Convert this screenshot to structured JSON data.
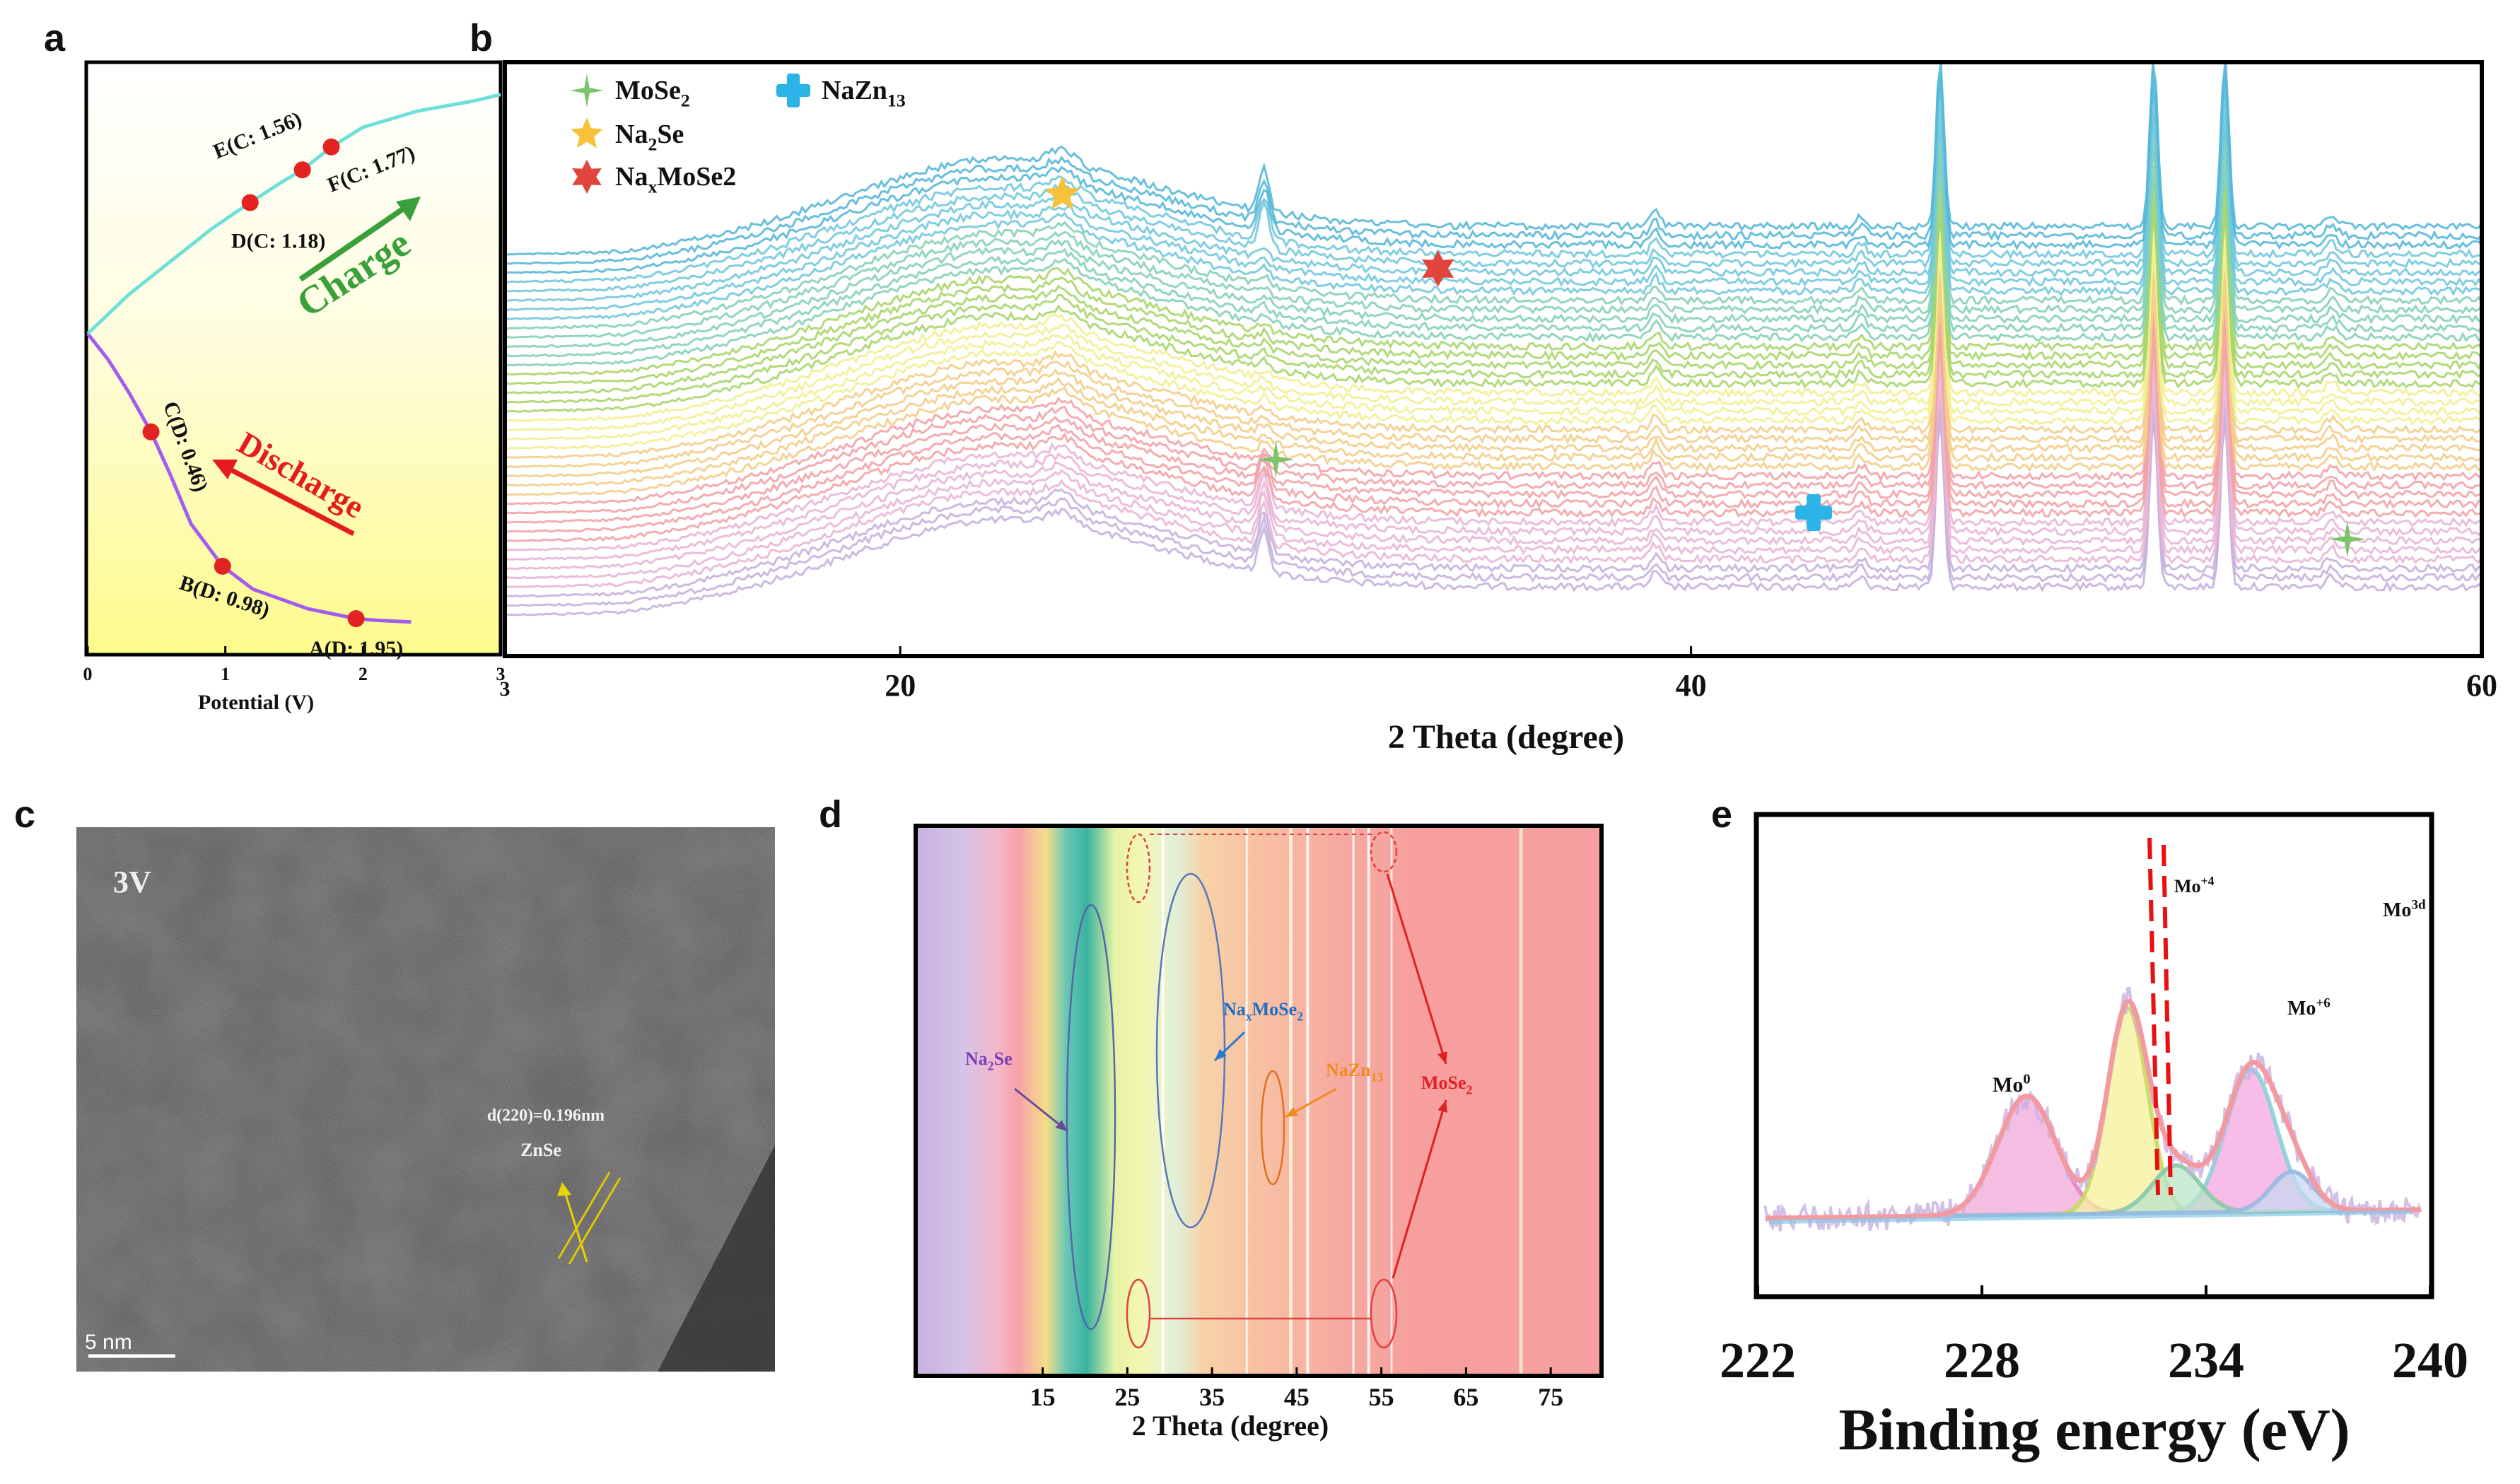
{
  "colors": {
    "charge": "#6fe0d8",
    "discharge": "#a45cf0",
    "point": "#e32222",
    "charge_arrow": "#3aa03a",
    "discharge_arrow": "#e51c1c",
    "mose2_marker": "#7cc46a",
    "na2se_marker": "#f6c23a",
    "naxmose2_marker": "#e0443c",
    "nazn13_marker": "#2ab4e8",
    "bg_yellow": "#ffff9a",
    "spectrum_palette": [
      "#c5b1de",
      "#e9b6d6",
      "#f3a3a7",
      "#f4cd8a",
      "#f2ef93",
      "#a9d66c",
      "#86d2b4",
      "#72c9dd",
      "#58b8d8"
    ]
  },
  "panels": {
    "a": {
      "letter": "a"
    },
    "b": {
      "letter": "b"
    },
    "c": {
      "letter": "c"
    },
    "d": {
      "letter": "d"
    },
    "e": {
      "letter": "e"
    }
  },
  "chart_data": [
    {
      "id": "a",
      "type": "line",
      "title": "",
      "xlabel": "Potential (V)",
      "ylabel": "",
      "xlim": [
        0,
        3
      ],
      "xticks": [
        "0",
        "1",
        "2",
        "3"
      ],
      "series": [
        {
          "name": "Discharge",
          "x": [
            2.35,
            2.1,
            1.95,
            1.6,
            1.2,
            0.98,
            0.75,
            0.6,
            0.46,
            0.3,
            0.15,
            0.0
          ],
          "y": [
            0.1,
            0.105,
            0.11,
            0.14,
            0.2,
            0.27,
            0.4,
            0.55,
            0.68,
            0.8,
            0.9,
            0.98
          ]
        },
        {
          "name": "Charge",
          "x": [
            0.0,
            0.3,
            0.6,
            0.9,
            1.18,
            1.4,
            1.56,
            1.77,
            2.0,
            2.4,
            2.8,
            3.0
          ],
          "y": [
            0.98,
            1.1,
            1.2,
            1.3,
            1.38,
            1.44,
            1.48,
            1.55,
            1.61,
            1.66,
            1.69,
            1.71
          ]
        }
      ],
      "points": [
        {
          "label": "A(D: 1.95)",
          "x": 1.95,
          "y": 0.11
        },
        {
          "label": "B(D: 0.98)",
          "x": 0.98,
          "y": 0.27
        },
        {
          "label": "C(D: 0.46)",
          "x": 0.46,
          "y": 0.68
        },
        {
          "label": "D(C: 1.18)",
          "x": 1.18,
          "y": 1.38
        },
        {
          "label": "E(C: 1.56)",
          "x": 1.56,
          "y": 1.48
        },
        {
          "label": "F(C: 1.77)",
          "x": 1.77,
          "y": 1.55
        }
      ],
      "annotations": [
        "Charge",
        "Discharge"
      ]
    },
    {
      "id": "b",
      "type": "line",
      "title": "",
      "xlabel": "2 Theta (degree)",
      "ylabel": "",
      "xlim": [
        10,
        60
      ],
      "xticks": [
        "20",
        "40",
        "60"
      ],
      "left_tick_label": "3",
      "num_patterns": 40,
      "peaks_deg": [
        29.2,
        39.1,
        44.3,
        46.3,
        51.7,
        53.5,
        56.2
      ],
      "broad_hump_center_deg": 22.5,
      "legend": [
        {
          "name": "MoSe",
          "sub": "2",
          "marker": "plus",
          "color_key": "mose2_marker"
        },
        {
          "name": "NaZn",
          "sub": "13",
          "marker": "cross",
          "color_key": "nazn13_marker"
        },
        {
          "name": "Na",
          "sub": "2",
          "tail": "Se",
          "marker": "star",
          "color_key": "na2se_marker"
        },
        {
          "name": "Na",
          "sub": "x",
          "tail": "MoSe2",
          "marker": "star6",
          "color_key": "naxmose2_marker"
        }
      ],
      "markers": [
        {
          "type": "na2se",
          "x": 24.1,
          "level": 0.82
        },
        {
          "type": "naxmose2",
          "x": 33.6,
          "level": 0.68
        },
        {
          "type": "mose2",
          "x": 29.5,
          "level": 0.32
        },
        {
          "type": "nazn13",
          "x": 43.1,
          "level": 0.22
        },
        {
          "type": "mose2",
          "x": 56.6,
          "level": 0.17
        }
      ]
    },
    {
      "id": "d",
      "type": "heatmap",
      "xlabel": "2 Theta (degree)",
      "xticks": [
        "15",
        "25",
        "35",
        "45",
        "55",
        "65",
        "75"
      ],
      "labels": [
        {
          "text": "Na",
          "sub": "2",
          "tail": "Se",
          "color": "#7b3fb8"
        },
        {
          "text": "Na",
          "sub": "x",
          "tail": "MoSe",
          "sub2": "2",
          "color": "#1e6fc2"
        },
        {
          "text": "NaZn",
          "sub": "13",
          "tail": "",
          "color": "#f08a1c"
        },
        {
          "text": "MoSe",
          "sub": "2",
          "tail": "",
          "color": "#e02020"
        }
      ]
    },
    {
      "id": "e",
      "type": "line",
      "title": "",
      "xlabel": "Binding energy (eV)",
      "ylabel": "",
      "xlim": [
        222,
        240
      ],
      "xticks": [
        "222",
        "228",
        "234",
        "240"
      ],
      "labels": [
        {
          "text": "Mo",
          "sup": "+4"
        },
        {
          "text": "Mo",
          "sup": "3d"
        },
        {
          "text": "Mo",
          "sup": "+6"
        },
        {
          "text": "Mo",
          "sup": "0"
        }
      ],
      "peaks_ev": [
        {
          "name": "Mo0",
          "center": 229.2,
          "height": 0.32
        },
        {
          "name": "Mo+4",
          "center": 231.9,
          "height": 0.55
        },
        {
          "name": "Mo+6",
          "center": 235.2,
          "height": 0.38
        }
      ]
    }
  ],
  "image_c": {
    "label": "3V",
    "lattice": "d(220)=0.196nm",
    "phase": "ZnSe",
    "scale": "5 nm"
  }
}
